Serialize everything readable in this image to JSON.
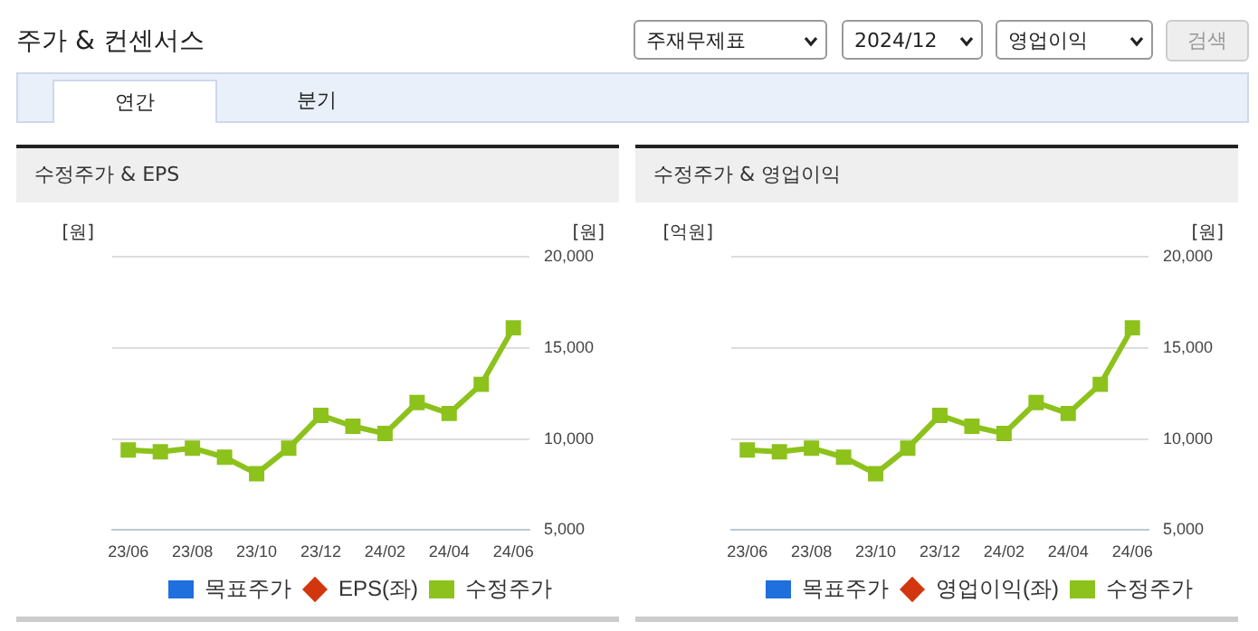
{
  "chart_data": [
    {
      "type": "other",
      "title": "주가 & 컨센서스",
      "annotations": [
        "주재무제표",
        "2024/12",
        "영업이익",
        "검색",
        "연간",
        "분기"
      ]
    },
    {
      "type": "line",
      "title": "수정주가 & EPS",
      "ylabel": "[원]",
      "y2label": "[원]",
      "categories": [
        "23/06",
        null,
        "23/08",
        null,
        "23/10",
        null,
        "23/12",
        null,
        "24/02",
        null,
        "24/04",
        null,
        "24/06"
      ],
      "series": [
        {
          "name": "목표주가",
          "color": "#1f6fde",
          "type": "bar",
          "values": [
            null,
            null,
            null,
            null,
            null,
            null,
            null,
            null,
            null,
            null,
            null,
            null,
            null
          ]
        },
        {
          "name": "EPS(좌)",
          "color": "#d2360f",
          "marker": "diamond",
          "values": [
            null,
            null,
            null,
            null,
            null,
            null,
            null,
            null,
            null,
            null,
            null,
            null,
            null
          ]
        },
        {
          "name": "수정주가",
          "color": "#8cc21b",
          "axis": "y2",
          "marker": "square",
          "values": [
            9400,
            9300,
            9500,
            9000,
            8100,
            9500,
            11300,
            10700,
            10300,
            12000,
            11400,
            13000,
            16100
          ]
        }
      ],
      "y2lim": [
        5000,
        20000
      ],
      "y2ticks": [
        {
          "value": 5000,
          "label": "5,000"
        },
        {
          "value": 10000,
          "label": "10,000"
        },
        {
          "value": 15000,
          "label": "15,000"
        },
        {
          "value": 20000,
          "label": "20,000"
        }
      ],
      "grid": "y",
      "legend": "bottom"
    },
    {
      "type": "line",
      "title": "수정주가 & 영업이익",
      "ylabel": "[억원]",
      "y2label": "[원]",
      "categories": [
        "23/06",
        null,
        "23/08",
        null,
        "23/10",
        null,
        "23/12",
        null,
        "24/02",
        null,
        "24/04",
        null,
        "24/06"
      ],
      "series": [
        {
          "name": "목표주가",
          "color": "#1f6fde",
          "type": "bar",
          "values": [
            null,
            null,
            null,
            null,
            null,
            null,
            null,
            null,
            null,
            null,
            null,
            null,
            null
          ]
        },
        {
          "name": "영업이익(좌)",
          "color": "#d2360f",
          "marker": "diamond",
          "values": [
            null,
            null,
            null,
            null,
            null,
            null,
            null,
            null,
            null,
            null,
            null,
            null,
            null
          ]
        },
        {
          "name": "수정주가",
          "color": "#8cc21b",
          "axis": "y2",
          "marker": "square",
          "values": [
            9400,
            9300,
            9500,
            9000,
            8100,
            9500,
            11300,
            10700,
            10300,
            12000,
            11400,
            13000,
            16100
          ]
        }
      ],
      "y2lim": [
        5000,
        20000
      ],
      "y2ticks": [
        {
          "value": 5000,
          "label": "5,000"
        },
        {
          "value": 10000,
          "label": "10,000"
        },
        {
          "value": 15000,
          "label": "15,000"
        },
        {
          "value": 20000,
          "label": "20,000"
        }
      ],
      "grid": "y",
      "legend": "bottom"
    }
  ]
}
